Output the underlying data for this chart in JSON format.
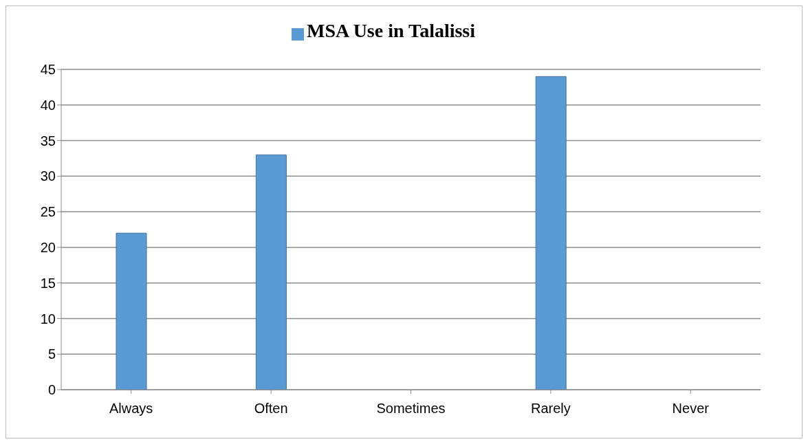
{
  "chart_data": {
    "type": "bar",
    "categories": [
      "Always",
      "Often",
      "Sometimes",
      "Rarely",
      "Never"
    ],
    "series": [
      {
        "name": "MSA Use in Talalissi",
        "color": "#5b9bd5",
        "values": [
          22,
          33,
          0,
          44,
          0
        ]
      }
    ],
    "ylim": [
      0,
      45
    ],
    "yticks": [
      0,
      5,
      10,
      15,
      20,
      25,
      30,
      35,
      40,
      45
    ],
    "grid": "y",
    "legend": "top"
  }
}
